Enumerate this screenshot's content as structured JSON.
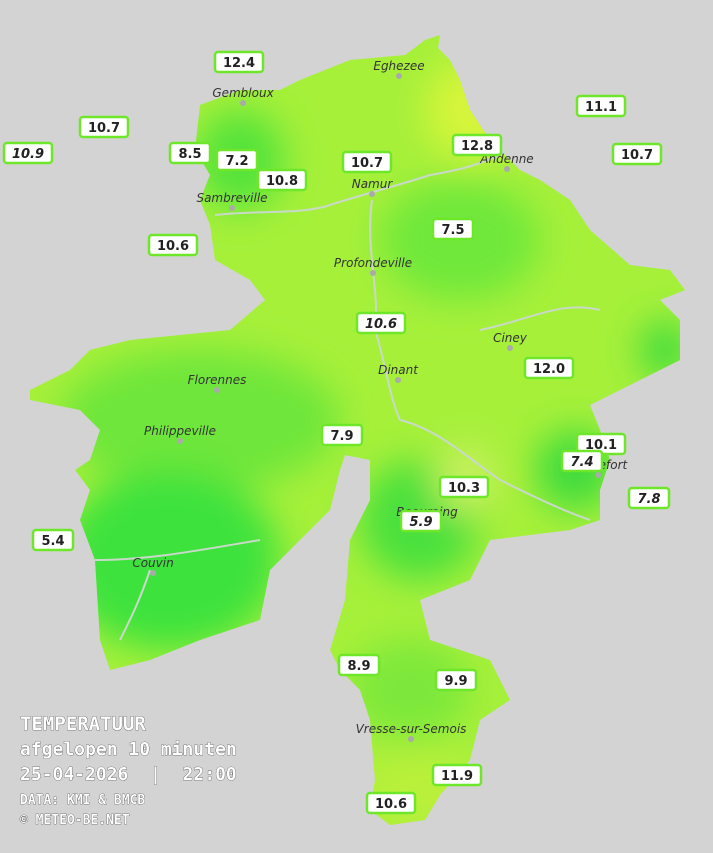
{
  "legend": {
    "title": "TEMPERATUUR",
    "subtitle": "afgelopen 10 minuten",
    "datetime": "25-04-2026  |  22:00",
    "source": "DATA: KMI & BMCB",
    "copyright": "© METEO-BE.NET"
  },
  "towns": [
    "Eghezee",
    "Gembloux",
    "Andenne",
    "Namur",
    "Sambreville",
    "Profondeville",
    "Ciney",
    "Dinant",
    "Florennes",
    "Philippeville",
    "Rochefort",
    "Beauraing",
    "Couvin",
    "Vresse-sur-Semois"
  ],
  "stations": [
    {
      "label": "12.4",
      "italic": false
    },
    {
      "label": "10.7",
      "italic": false
    },
    {
      "label": "10.9",
      "italic": true
    },
    {
      "label": "8.5",
      "italic": false
    },
    {
      "label": "7.2",
      "italic": false
    },
    {
      "label": "10.8",
      "italic": false
    },
    {
      "label": "10.7",
      "italic": false
    },
    {
      "label": "12.8",
      "italic": false
    },
    {
      "label": "11.1",
      "italic": false
    },
    {
      "label": "10.7",
      "italic": false
    },
    {
      "label": "7.5",
      "italic": false
    },
    {
      "label": "10.6",
      "italic": false
    },
    {
      "label": "10.6",
      "italic": true
    },
    {
      "label": "12.0",
      "italic": false
    },
    {
      "label": "7.9",
      "italic": false
    },
    {
      "label": "10.1",
      "italic": false
    },
    {
      "label": "7.4",
      "italic": true
    },
    {
      "label": "10.3",
      "italic": false
    },
    {
      "label": "7.8",
      "italic": true
    },
    {
      "label": "5.9",
      "italic": true
    },
    {
      "label": "5.4",
      "italic": false
    },
    {
      "label": "8.9",
      "italic": false
    },
    {
      "label": "9.9",
      "italic": false
    },
    {
      "label": "11.9",
      "italic": false
    },
    {
      "label": "10.6",
      "italic": false
    }
  ]
}
